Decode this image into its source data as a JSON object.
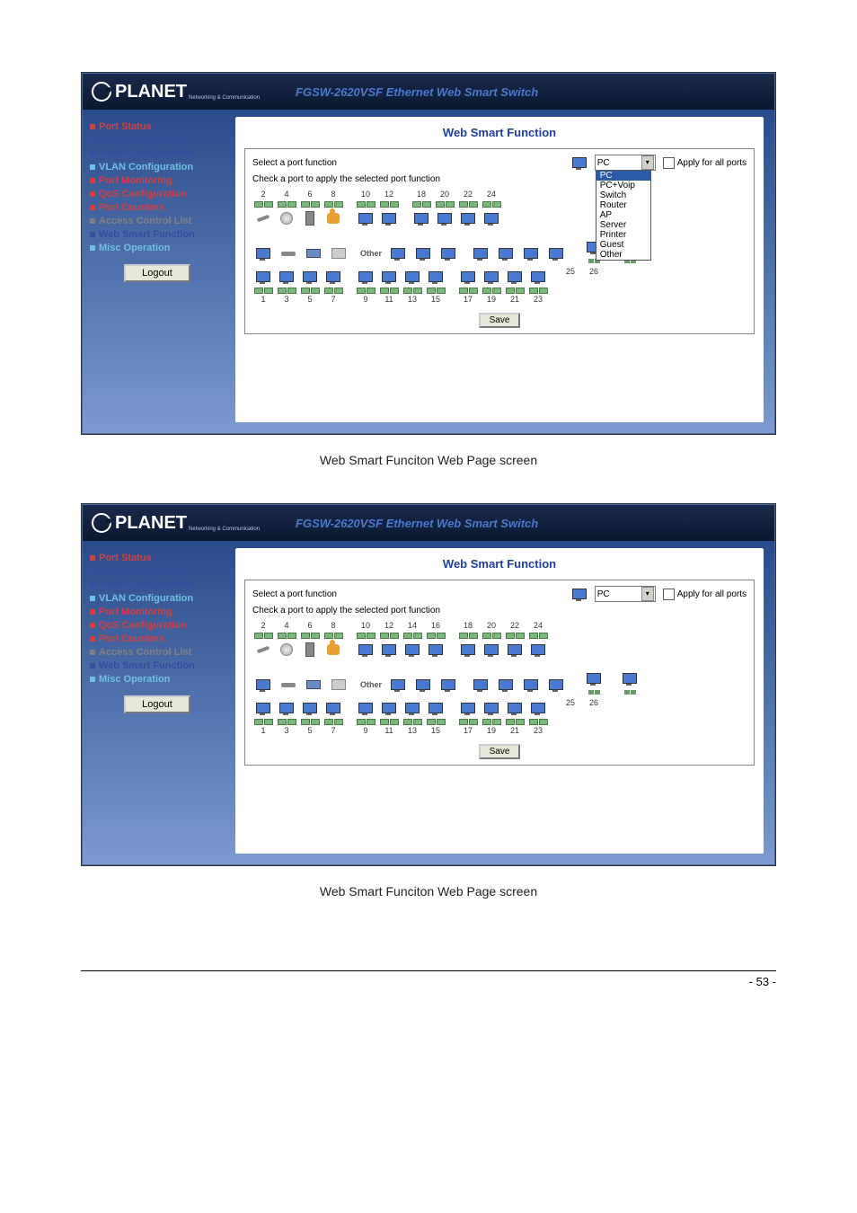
{
  "page_number": "- 53 -",
  "caption": "Web Smart Funciton Web Page screen",
  "product_title": "FGSW-2620VSF Ethernet Web Smart Switch",
  "logo_text": "PLANET",
  "logo_sub": "Networking & Communication",
  "sidebar": {
    "items": [
      {
        "label": "Port Status",
        "color": "#d04040"
      },
      {
        "label": "Port Configuration",
        "color": "#3050a0"
      },
      {
        "label": "Trunk Configuration",
        "color": "#3050a0"
      },
      {
        "label": "VLAN Configuration",
        "color": "#70c0e0"
      },
      {
        "label": "Port Monitoring",
        "color": "#d04040"
      },
      {
        "label": "QoS Configuration",
        "color": "#d04040"
      },
      {
        "label": "Port Counters",
        "color": "#d04040"
      },
      {
        "label": "Access Control List",
        "color": "#808080"
      },
      {
        "label": "Web Smart Function",
        "color": "#3050a0"
      },
      {
        "label": "Misc Operation",
        "color": "#70c0e0"
      }
    ],
    "logout": "Logout"
  },
  "main": {
    "title": "Web Smart Function",
    "select_label": "Select a port function",
    "dropdown_value": "PC",
    "dropdown_options": [
      "PC",
      "PC+Voip",
      "Switch",
      "Router",
      "AP",
      "Server",
      "Printer",
      "Guest",
      "Other"
    ],
    "apply_label": "Apply for all ports",
    "instruction": "Check a port to apply the selected port function",
    "other_label": "Other",
    "save": "Save",
    "top_row_ports": [
      2,
      4,
      6,
      8,
      10,
      12,
      14,
      16,
      18,
      20,
      22,
      24
    ],
    "bottom_row_ports": [
      1,
      3,
      5,
      7,
      9,
      11,
      13,
      15,
      17,
      19,
      21,
      23
    ],
    "combo_ports": [
      25,
      26
    ],
    "func_top_icons": [
      "wrench",
      "disc",
      "tower",
      "people"
    ],
    "func_bottom_icons": [
      "pc",
      "router",
      "switch",
      "printer"
    ]
  },
  "colors": {
    "header_bg_top": "#1a2a4a",
    "header_bg_bottom": "#0a1830",
    "body_grad_top": "#2a4a8a",
    "body_grad_bottom": "#7a9ad0",
    "title_color": "#2040a0",
    "product_color": "#4a7ad0",
    "led_green": "#7ab87a",
    "button_bg": "#e8e8d8"
  },
  "screenshot1": {
    "dropdown_open": true,
    "top_visible_count": 6
  },
  "screenshot2": {
    "dropdown_open": false,
    "top_visible_count": 8
  }
}
